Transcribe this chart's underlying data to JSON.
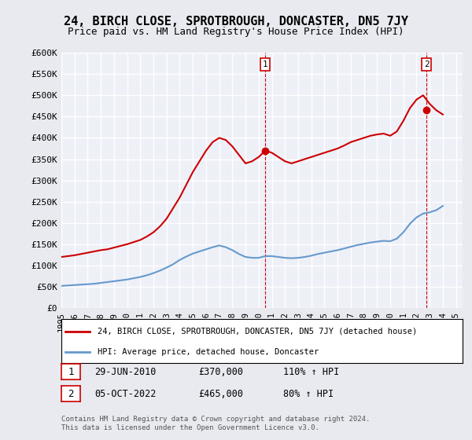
{
  "title": "24, BIRCH CLOSE, SPROTBROUGH, DONCASTER, DN5 7JY",
  "subtitle": "Price paid vs. HM Land Registry's House Price Index (HPI)",
  "background_color": "#e8eaf0",
  "plot_bg_color": "#eef0f8",
  "grid_color": "#ffffff",
  "ylabel": "",
  "ylim": [
    0,
    600000
  ],
  "yticks": [
    0,
    50000,
    100000,
    150000,
    200000,
    250000,
    300000,
    350000,
    400000,
    450000,
    500000,
    550000,
    600000
  ],
  "ytick_labels": [
    "£0",
    "£50K",
    "£100K",
    "£150K",
    "£200K",
    "£250K",
    "£300K",
    "£350K",
    "£400K",
    "£450K",
    "£500K",
    "£550K",
    "£600K"
  ],
  "xlim_start": 1995.0,
  "xlim_end": 2025.5,
  "xtick_years": [
    1995,
    1996,
    1997,
    1998,
    1999,
    2000,
    2001,
    2002,
    2003,
    2004,
    2005,
    2006,
    2007,
    2008,
    2009,
    2010,
    2011,
    2012,
    2013,
    2014,
    2015,
    2016,
    2017,
    2018,
    2019,
    2020,
    2021,
    2022,
    2023,
    2024,
    2025
  ],
  "sale1_x": 2010.49,
  "sale1_y": 370000,
  "sale1_label": "1",
  "sale2_x": 2022.76,
  "sale2_y": 465000,
  "sale2_label": "2",
  "property_line_color": "#cc0000",
  "hpi_line_color": "#6699cc",
  "sale_marker_color": "#cc0000",
  "legend_box_color": "#ffffff",
  "legend_entry1": "24, BIRCH CLOSE, SPROTBROUGH, DONCASTER, DN5 7JY (detached house)",
  "legend_entry2": "HPI: Average price, detached house, Doncaster",
  "annotation1_date": "29-JUN-2010",
  "annotation1_price": "£370,000",
  "annotation1_hpi": "110% ↑ HPI",
  "annotation2_date": "05-OCT-2022",
  "annotation2_price": "£465,000",
  "annotation2_hpi": "80% ↑ HPI",
  "footer": "Contains HM Land Registry data © Crown copyright and database right 2024.\nThis data is licensed under the Open Government Licence v3.0.",
  "property_years": [
    1995.0,
    1995.5,
    1996.0,
    1996.5,
    1997.0,
    1997.5,
    1998.0,
    1998.5,
    1999.0,
    1999.5,
    2000.0,
    2000.5,
    2001.0,
    2001.5,
    2002.0,
    2002.5,
    2003.0,
    2003.5,
    2004.0,
    2004.5,
    2005.0,
    2005.5,
    2006.0,
    2006.5,
    2007.0,
    2007.5,
    2008.0,
    2008.5,
    2009.0,
    2009.5,
    2010.0,
    2010.5,
    2011.0,
    2011.5,
    2012.0,
    2012.5,
    2013.0,
    2013.5,
    2014.0,
    2014.5,
    2015.0,
    2015.5,
    2016.0,
    2016.5,
    2017.0,
    2017.5,
    2018.0,
    2018.5,
    2019.0,
    2019.5,
    2020.0,
    2020.5,
    2021.0,
    2021.5,
    2022.0,
    2022.5,
    2023.0,
    2023.5,
    2024.0
  ],
  "property_values": [
    120000,
    122000,
    124000,
    127000,
    130000,
    133000,
    136000,
    138000,
    142000,
    146000,
    150000,
    155000,
    160000,
    168000,
    178000,
    192000,
    210000,
    235000,
    260000,
    290000,
    320000,
    345000,
    370000,
    390000,
    400000,
    395000,
    380000,
    360000,
    340000,
    345000,
    355000,
    370000,
    365000,
    355000,
    345000,
    340000,
    345000,
    350000,
    355000,
    360000,
    365000,
    370000,
    375000,
    382000,
    390000,
    395000,
    400000,
    405000,
    408000,
    410000,
    405000,
    415000,
    440000,
    470000,
    490000,
    500000,
    480000,
    465000,
    455000
  ],
  "hpi_years": [
    1995.0,
    1995.5,
    1996.0,
    1996.5,
    1997.0,
    1997.5,
    1998.0,
    1998.5,
    1999.0,
    1999.5,
    2000.0,
    2000.5,
    2001.0,
    2001.5,
    2002.0,
    2002.5,
    2003.0,
    2003.5,
    2004.0,
    2004.5,
    2005.0,
    2005.5,
    2006.0,
    2006.5,
    2007.0,
    2007.5,
    2008.0,
    2008.5,
    2009.0,
    2009.5,
    2010.0,
    2010.5,
    2011.0,
    2011.5,
    2012.0,
    2012.5,
    2013.0,
    2013.5,
    2014.0,
    2014.5,
    2015.0,
    2015.5,
    2016.0,
    2016.5,
    2017.0,
    2017.5,
    2018.0,
    2018.5,
    2019.0,
    2019.5,
    2020.0,
    2020.5,
    2021.0,
    2021.5,
    2022.0,
    2022.5,
    2023.0,
    2023.5,
    2024.0
  ],
  "hpi_values": [
    52000,
    53000,
    54000,
    55000,
    56000,
    57000,
    59000,
    61000,
    63000,
    65000,
    67000,
    70000,
    73000,
    77000,
    82000,
    88000,
    95000,
    103000,
    113000,
    121000,
    128000,
    133000,
    138000,
    143000,
    147000,
    143000,
    136000,
    127000,
    120000,
    118000,
    118000,
    122000,
    122000,
    120000,
    118000,
    117000,
    118000,
    120000,
    123000,
    127000,
    130000,
    133000,
    136000,
    140000,
    144000,
    148000,
    151000,
    154000,
    156000,
    158000,
    157000,
    163000,
    178000,
    198000,
    213000,
    222000,
    225000,
    230000,
    240000
  ]
}
